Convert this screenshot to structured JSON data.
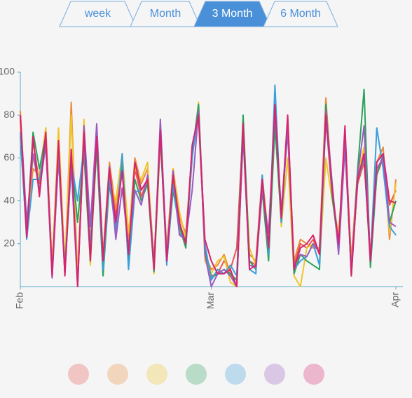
{
  "tabs": {
    "items": [
      "week",
      "Month",
      "3 Month",
      "6 Month"
    ],
    "selected": 2
  },
  "chart_data": {
    "type": "line",
    "xlim": [
      0,
      59
    ],
    "xticks": [
      {
        "value": 0,
        "label": "Feb"
      },
      {
        "value": 30,
        "label": "Mar"
      },
      {
        "value": 59,
        "label": "Apr"
      }
    ],
    "ylim": [
      0,
      100
    ],
    "yticks": [
      20,
      40,
      60,
      80,
      100
    ],
    "legend": "bottom",
    "series": [
      {
        "color": "#e8554e",
        "values": [
          78,
          25,
          68,
          48,
          70,
          8,
          65,
          6,
          62,
          2,
          70,
          15,
          75,
          10,
          52,
          33,
          58,
          18,
          55,
          42,
          50,
          10,
          72,
          15,
          50,
          28,
          22,
          65,
          78,
          18,
          5,
          6,
          12,
          8,
          18,
          75,
          12,
          10,
          48,
          18,
          82,
          32,
          78,
          10,
          20,
          18,
          22,
          15,
          78,
          42,
          22,
          72,
          10,
          48,
          58,
          15,
          52,
          60,
          38,
          45
        ]
      },
      {
        "color": "#ea8b3c",
        "values": [
          82,
          28,
          55,
          52,
          74,
          10,
          70,
          8,
          86,
          4,
          76,
          20,
          72,
          15,
          58,
          36,
          55,
          22,
          60,
          48,
          55,
          12,
          70,
          18,
          55,
          32,
          25,
          62,
          82,
          15,
          8,
          10,
          15,
          6,
          0,
          70,
          15,
          12,
          52,
          22,
          80,
          35,
          75,
          12,
          22,
          20,
          18,
          18,
          88,
          45,
          18,
          70,
          12,
          55,
          62,
          10,
          58,
          65,
          22,
          50
        ]
      },
      {
        "color": "#f0c52a",
        "values": [
          75,
          30,
          60,
          50,
          74,
          8,
          74,
          10,
          80,
          2,
          78,
          10,
          70,
          8,
          50,
          40,
          62,
          25,
          55,
          50,
          58,
          6,
          68,
          15,
          55,
          35,
          22,
          60,
          86,
          12,
          6,
          12,
          14,
          2,
          0,
          72,
          18,
          10,
          50,
          20,
          80,
          28,
          60,
          5,
          0,
          18,
          20,
          10,
          60,
          40,
          25,
          65,
          8,
          52,
          65,
          12,
          55,
          60,
          25,
          48
        ]
      },
      {
        "color": "#2ba35c",
        "values": [
          70,
          24,
          72,
          55,
          70,
          6,
          62,
          8,
          60,
          30,
          62,
          12,
          65,
          5,
          48,
          28,
          58,
          10,
          50,
          40,
          48,
          7,
          70,
          12,
          45,
          28,
          18,
          62,
          85,
          18,
          4,
          6,
          8,
          6,
          3,
          80,
          12,
          8,
          45,
          12,
          75,
          30,
          78,
          6,
          15,
          12,
          10,
          8,
          85,
          42,
          18,
          70,
          5,
          55,
          92,
          9,
          52,
          62,
          30,
          40
        ]
      },
      {
        "color": "#3aa0dc",
        "values": [
          72,
          22,
          50,
          50,
          68,
          6,
          60,
          6,
          58,
          40,
          65,
          18,
          70,
          8,
          50,
          25,
          62,
          8,
          44,
          45,
          50,
          10,
          72,
          10,
          48,
          25,
          22,
          60,
          82,
          20,
          3,
          8,
          6,
          10,
          5,
          72,
          8,
          6,
          52,
          15,
          94,
          30,
          75,
          8,
          12,
          14,
          20,
          10,
          78,
          45,
          20,
          68,
          6,
          50,
          60,
          12,
          74,
          55,
          28,
          24
        ]
      },
      {
        "color": "#9b5cc0",
        "values": [
          80,
          30,
          62,
          45,
          66,
          4,
          60,
          8,
          56,
          0,
          75,
          28,
          76,
          12,
          56,
          22,
          46,
          18,
          45,
          38,
          52,
          8,
          78,
          14,
          54,
          24,
          22,
          45,
          82,
          15,
          0,
          6,
          8,
          5,
          0,
          70,
          10,
          9,
          45,
          25,
          82,
          35,
          72,
          10,
          15,
          14,
          20,
          16,
          82,
          48,
          15,
          65,
          8,
          52,
          75,
          12,
          55,
          60,
          30,
          28
        ]
      },
      {
        "color": "#d6246e",
        "values": [
          80,
          23,
          70,
          42,
          72,
          5,
          68,
          5,
          64,
          0,
          72,
          12,
          70,
          12,
          55,
          30,
          54,
          15,
          58,
          45,
          50,
          8,
          73,
          12,
          52,
          30,
          20,
          66,
          80,
          22,
          12,
          6,
          6,
          8,
          0,
          76,
          8,
          10,
          50,
          18,
          85,
          32,
          80,
          8,
          18,
          20,
          24,
          15,
          80,
          45,
          20,
          75,
          5,
          50,
          62,
          12,
          58,
          62,
          40,
          39
        ]
      }
    ]
  }
}
